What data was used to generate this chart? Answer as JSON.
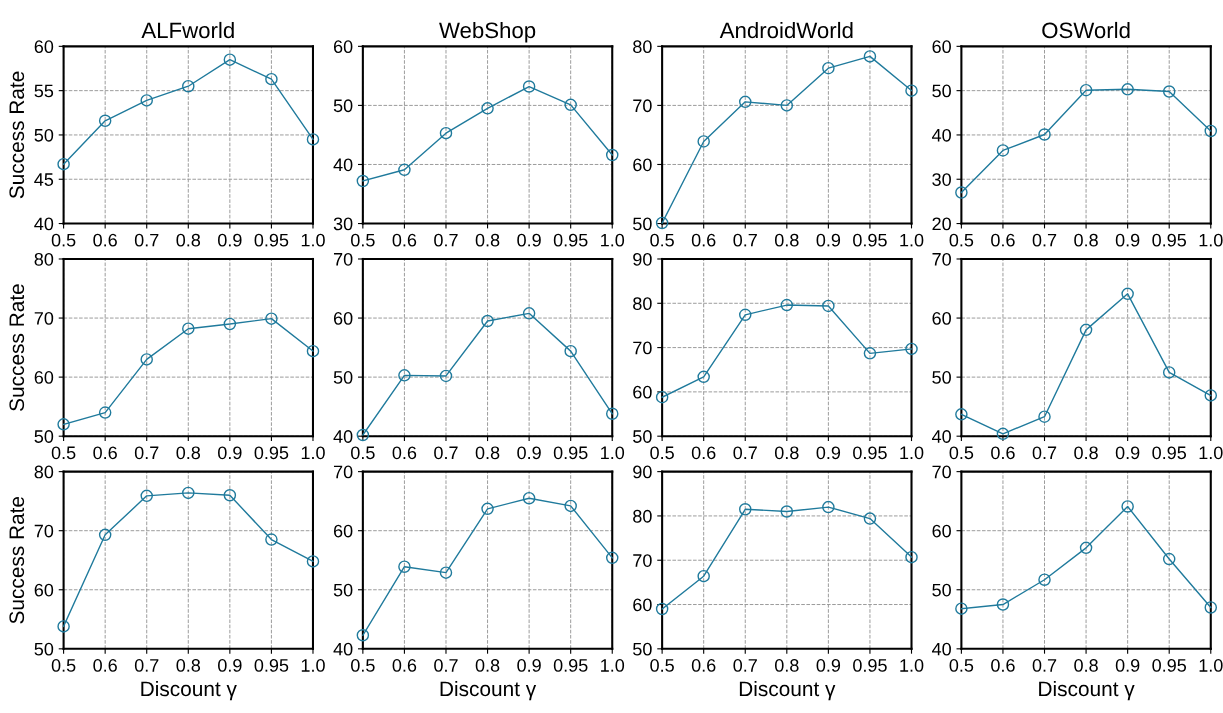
{
  "chart_data": [
    {
      "type": "line",
      "title": "ALFworld",
      "ylabel": "Success Rate",
      "categories": [
        "0.5",
        "0.6",
        "0.7",
        "0.8",
        "0.9",
        "0.95",
        "1.0"
      ],
      "series": [
        {
          "color": "#1f7a9c",
          "values": [
            46.7,
            51.6,
            53.9,
            55.5,
            58.5,
            56.3,
            49.5
          ]
        }
      ],
      "ylim": [
        40,
        60
      ],
      "yticks": [
        40,
        45,
        50,
        55,
        60
      ],
      "grid": true,
      "marker": "circle"
    },
    {
      "type": "line",
      "title": "WebShop",
      "categories": [
        "0.5",
        "0.6",
        "0.7",
        "0.8",
        "0.9",
        "0.95",
        "1.0"
      ],
      "series": [
        {
          "color": "#1f7a9c",
          "values": [
            37.2,
            39.1,
            45.3,
            49.5,
            53.2,
            50.1,
            41.6
          ]
        }
      ],
      "ylim": [
        30,
        60
      ],
      "yticks": [
        30,
        40,
        50,
        60
      ],
      "grid": true,
      "marker": "circle"
    },
    {
      "type": "line",
      "title": "AndroidWorld",
      "categories": [
        "0.5",
        "0.6",
        "0.7",
        "0.8",
        "0.9",
        "0.95",
        "1.0"
      ],
      "series": [
        {
          "color": "#1f7a9c",
          "values": [
            50.1,
            63.9,
            70.6,
            70.0,
            76.3,
            78.3,
            72.5
          ]
        }
      ],
      "ylim": [
        50,
        80
      ],
      "yticks": [
        50,
        60,
        70,
        80
      ],
      "grid": true,
      "marker": "circle"
    },
    {
      "type": "line",
      "title": "OSWorld",
      "categories": [
        "0.5",
        "0.6",
        "0.7",
        "0.8",
        "0.9",
        "0.95",
        "1.0"
      ],
      "series": [
        {
          "color": "#1f7a9c",
          "values": [
            27.0,
            36.5,
            40.1,
            50.1,
            50.3,
            49.8,
            40.9
          ]
        }
      ],
      "ylim": [
        20,
        60
      ],
      "yticks": [
        20,
        30,
        40,
        50,
        60
      ],
      "grid": true,
      "marker": "circle"
    },
    {
      "type": "line",
      "ylabel": "Success Rate",
      "categories": [
        "0.5",
        "0.6",
        "0.7",
        "0.8",
        "0.9",
        "0.95",
        "1.0"
      ],
      "series": [
        {
          "color": "#1f7a9c",
          "values": [
            52.0,
            54.0,
            63.0,
            68.2,
            69.0,
            69.9,
            64.4
          ]
        }
      ],
      "ylim": [
        50,
        80
      ],
      "yticks": [
        50,
        60,
        70,
        80
      ],
      "grid": true,
      "marker": "circle"
    },
    {
      "type": "line",
      "categories": [
        "0.5",
        "0.6",
        "0.7",
        "0.8",
        "0.9",
        "0.95",
        "1.0"
      ],
      "series": [
        {
          "color": "#1f7a9c",
          "values": [
            40.2,
            50.3,
            50.2,
            59.5,
            60.8,
            54.4,
            43.8
          ]
        }
      ],
      "ylim": [
        40,
        70
      ],
      "yticks": [
        40,
        50,
        60,
        70
      ],
      "grid": true,
      "marker": "circle"
    },
    {
      "type": "line",
      "categories": [
        "0.5",
        "0.6",
        "0.7",
        "0.8",
        "0.9",
        "0.95",
        "1.0"
      ],
      "series": [
        {
          "color": "#1f7a9c",
          "values": [
            58.8,
            63.4,
            77.4,
            79.6,
            79.4,
            68.7,
            69.7
          ]
        }
      ],
      "ylim": [
        50,
        90
      ],
      "yticks": [
        50,
        60,
        70,
        80,
        90
      ],
      "grid": true,
      "marker": "circle"
    },
    {
      "type": "line",
      "categories": [
        "0.5",
        "0.6",
        "0.7",
        "0.8",
        "0.9",
        "0.95",
        "1.0"
      ],
      "series": [
        {
          "color": "#1f7a9c",
          "values": [
            43.7,
            40.4,
            43.3,
            58.0,
            64.1,
            50.8,
            46.9
          ]
        }
      ],
      "ylim": [
        40,
        70
      ],
      "yticks": [
        40,
        50,
        60,
        70
      ],
      "grid": true,
      "marker": "circle"
    },
    {
      "type": "line",
      "xlabel": "Discount γ",
      "ylabel": "Success Rate",
      "categories": [
        "0.5",
        "0.6",
        "0.7",
        "0.8",
        "0.9",
        "0.95",
        "1.0"
      ],
      "series": [
        {
          "color": "#1f7a9c",
          "values": [
            53.8,
            69.3,
            75.9,
            76.4,
            76.0,
            68.5,
            64.8
          ]
        }
      ],
      "ylim": [
        50,
        80
      ],
      "yticks": [
        50,
        60,
        70,
        80
      ],
      "grid": true,
      "marker": "circle"
    },
    {
      "type": "line",
      "xlabel": "Discount γ",
      "categories": [
        "0.5",
        "0.6",
        "0.7",
        "0.8",
        "0.9",
        "0.95",
        "1.0"
      ],
      "series": [
        {
          "color": "#1f7a9c",
          "values": [
            42.3,
            53.9,
            52.9,
            63.7,
            65.5,
            64.2,
            55.4
          ]
        }
      ],
      "ylim": [
        40,
        70
      ],
      "yticks": [
        40,
        50,
        60,
        70
      ],
      "grid": true,
      "marker": "circle"
    },
    {
      "type": "line",
      "xlabel": "Discount γ",
      "categories": [
        "0.5",
        "0.6",
        "0.7",
        "0.8",
        "0.9",
        "0.95",
        "1.0"
      ],
      "series": [
        {
          "color": "#1f7a9c",
          "values": [
            59.0,
            66.4,
            81.5,
            81.0,
            82.0,
            79.4,
            70.7
          ]
        }
      ],
      "ylim": [
        50,
        90
      ],
      "yticks": [
        50,
        60,
        70,
        80,
        90
      ],
      "grid": true,
      "marker": "circle"
    },
    {
      "type": "line",
      "xlabel": "Discount γ",
      "categories": [
        "0.5",
        "0.6",
        "0.7",
        "0.8",
        "0.9",
        "0.95",
        "1.0"
      ],
      "series": [
        {
          "color": "#1f7a9c",
          "values": [
            46.8,
            47.5,
            51.7,
            57.1,
            64.1,
            55.2,
            47.0
          ]
        }
      ],
      "ylim": [
        40,
        70
      ],
      "yticks": [
        40,
        50,
        60,
        70
      ],
      "grid": true,
      "marker": "circle"
    }
  ]
}
